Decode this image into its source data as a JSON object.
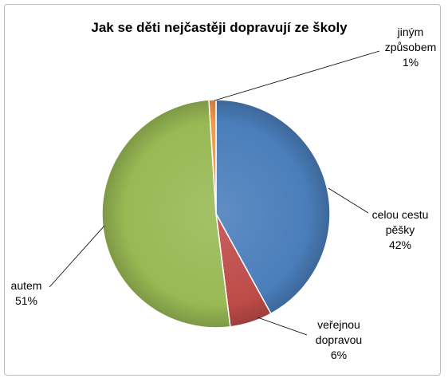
{
  "chart_data": {
    "type": "pie",
    "title": "Jak se děti nejčastěji dopravují ze školy",
    "slices": [
      {
        "label": "celou cestu pěšky",
        "label_lines": [
          "celou cestu",
          "pěšky"
        ],
        "value": 42,
        "value_label": "42%",
        "color": "#4a7ebb"
      },
      {
        "label": "veřejnou dopravou",
        "label_lines": [
          "veřejnou",
          "dopravou"
        ],
        "value": 6,
        "value_label": "6%",
        "color": "#be4b48"
      },
      {
        "label": "autem",
        "label_lines": [
          "autem"
        ],
        "value": 51,
        "value_label": "51%",
        "color": "#98b954"
      },
      {
        "label": "jiným způsobem",
        "label_lines": [
          "jiným",
          "způsobem"
        ],
        "value": 1,
        "value_label": "1%",
        "color": "#f79646"
      }
    ],
    "start_angle_deg": 0,
    "direction": "clockwise"
  }
}
